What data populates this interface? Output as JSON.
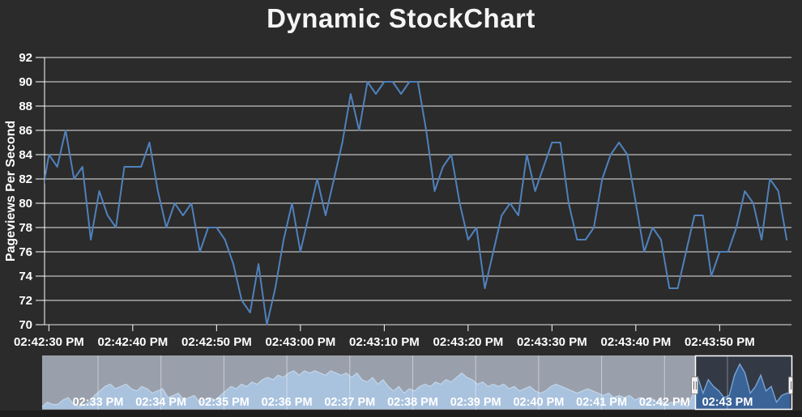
{
  "title": "Dynamic StockChart",
  "colors": {
    "background": "#2b2b2b",
    "plot_grid": "#efefef",
    "axis_line": "#ffffff",
    "tick_mark": "#ffffff",
    "axis_label": "#ffffff",
    "series_line": "#4f81bc",
    "nav_mask_bg": "#9aa0ab",
    "nav_mask_area_fill": "#a9c2de",
    "nav_mask_area_line": "#c3d6ea",
    "nav_selected_bg": "#343a45",
    "nav_selected_area_fill": "#3a6398",
    "nav_selected_area_line": "#79a4d6",
    "nav_gridline": "#ffffff",
    "nav_frame": "#ffffff",
    "nav_label": "#ffffff",
    "handle_bg": "#f2f2f2",
    "handle_border": "#8a8a8a",
    "handle_grip": "#6b6b6b",
    "bottom_strip": "#1d1d1d"
  },
  "chart_data": {
    "type": "line",
    "title": "Dynamic StockChart",
    "xlabel": "",
    "ylabel": "Pageviews Per Second",
    "ylim": [
      70,
      92
    ],
    "grid": true,
    "y_ticks": [
      92,
      90,
      88,
      86,
      84,
      82,
      80,
      78,
      76,
      74,
      72,
      70
    ],
    "x_tick_labels": [
      "02:42:30 PM",
      "02:42:40 PM",
      "02:42:50 PM",
      "02:43:00 PM",
      "02:43:10 PM",
      "02:43:20 PM",
      "02:43:30 PM",
      "02:43:40 PM",
      "02:43:50 PM"
    ],
    "series": [
      {
        "name": "Pageviews Per Second",
        "color": "#4f81bc",
        "x_start": "02:42:29 PM",
        "interval_seconds": 1,
        "values": [
          80,
          84,
          83,
          86,
          82,
          83,
          77,
          81,
          79,
          78,
          83,
          83,
          83,
          85,
          81,
          78,
          80,
          79,
          80,
          76,
          78,
          78,
          77,
          75,
          72,
          71,
          75,
          70,
          73,
          77,
          80,
          76,
          79,
          82,
          79,
          82,
          85,
          89,
          86,
          90,
          89,
          90,
          90,
          89,
          90,
          90,
          86,
          81,
          83,
          84,
          80,
          77,
          78,
          73,
          76,
          79,
          80,
          79,
          84,
          81,
          83,
          85,
          85,
          80,
          77,
          77,
          78,
          82,
          84,
          85,
          84,
          80,
          76,
          78,
          77,
          73,
          73,
          76,
          79,
          79,
          74,
          76,
          76,
          78,
          81,
          80,
          77,
          82,
          81,
          77
        ]
      }
    ],
    "navigator": {
      "type": "area",
      "labels": [
        "02:33 PM",
        "02:34 PM",
        "02:35 PM",
        "02:36 PM",
        "02:37 PM",
        "02:38 PM",
        "02:39 PM",
        "02:40 PM",
        "02:41 PM",
        "02:42 PM",
        "02:43 PM"
      ],
      "selected_range": {
        "start": "02:42:29 PM",
        "end": "02:44:00 PM"
      },
      "pre_start": "02:32:05 PM",
      "sample_interval_seconds": 5,
      "pre_values": [
        71,
        73,
        72,
        72,
        74,
        75,
        72,
        71,
        72,
        73,
        76,
        78,
        80,
        81,
        79,
        80,
        81,
        79,
        78,
        80,
        79,
        77,
        78,
        79,
        75,
        76,
        77,
        74,
        75,
        76,
        73,
        74,
        75,
        74,
        76,
        78,
        80,
        79,
        81,
        80,
        82,
        81,
        83,
        84,
        83,
        85,
        84,
        86,
        87,
        85,
        87,
        86,
        87,
        86,
        85,
        87,
        86,
        85,
        86,
        84,
        86,
        83,
        82,
        84,
        81,
        83,
        80,
        78,
        80,
        77,
        79,
        78,
        80,
        81,
        80,
        82,
        81,
        83,
        82,
        84,
        86,
        84,
        83,
        81,
        82,
        80,
        81,
        80,
        81,
        79,
        80,
        78,
        79,
        80,
        78,
        77,
        78,
        80,
        81,
        80,
        79,
        78,
        77,
        78,
        79,
        78,
        77,
        76,
        77,
        75,
        76,
        75,
        76,
        74,
        75,
        74,
        75,
        73,
        74,
        72,
        73,
        72,
        74,
        71,
        76
      ]
    }
  }
}
